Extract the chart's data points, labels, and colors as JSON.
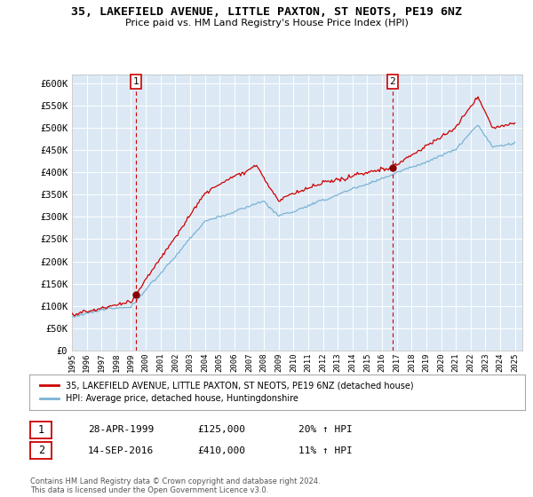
{
  "title": "35, LAKEFIELD AVENUE, LITTLE PAXTON, ST NEOTS, PE19 6NZ",
  "subtitle": "Price paid vs. HM Land Registry's House Price Index (HPI)",
  "plot_bg_color": "#dce9f5",
  "ylim": [
    0,
    620000
  ],
  "yticks": [
    0,
    50000,
    100000,
    150000,
    200000,
    250000,
    300000,
    350000,
    400000,
    450000,
    500000,
    550000,
    600000
  ],
  "ytick_labels": [
    "£0",
    "£50K",
    "£100K",
    "£150K",
    "£200K",
    "£250K",
    "£300K",
    "£350K",
    "£400K",
    "£450K",
    "£500K",
    "£550K",
    "£600K"
  ],
  "sale1_date": 1999.33,
  "sale1_price": 125000,
  "sale1_label": "1",
  "sale2_date": 2016.71,
  "sale2_price": 410000,
  "sale2_label": "2",
  "legend_line1": "35, LAKEFIELD AVENUE, LITTLE PAXTON, ST NEOTS, PE19 6NZ (detached house)",
  "legend_line2": "HPI: Average price, detached house, Huntingdonshire",
  "footer": "Contains HM Land Registry data © Crown copyright and database right 2024.\nThis data is licensed under the Open Government Licence v3.0.",
  "hpi_color": "#7ab3d4",
  "price_color": "#cc0000",
  "dashed_color": "#cc0000",
  "xstart": 1995,
  "xend": 2025
}
